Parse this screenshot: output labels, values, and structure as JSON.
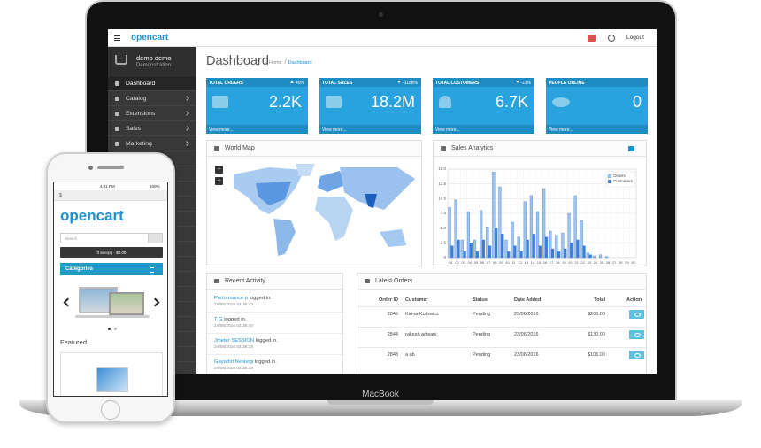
{
  "laptop": {
    "brand": "MacBook"
  },
  "header": {
    "logo": "opencart",
    "logout": "Logout"
  },
  "sidebar": {
    "user_name": "demo demo",
    "user_group": "Demonstration",
    "menu": [
      "Dashboard",
      "Catalog",
      "Extensions",
      "Sales",
      "Marketing"
    ]
  },
  "page": {
    "title": "Dashboard",
    "breadcrumb": [
      "Home",
      "Dashboard"
    ]
  },
  "tiles": [
    {
      "title": "TOTAL ORDERS",
      "change": "40%",
      "trend": "up",
      "value": "2.2K",
      "link": "View more..."
    },
    {
      "title": "TOTAL SALES",
      "change": "-1188%",
      "trend": "down",
      "value": "18.2M",
      "link": "View more..."
    },
    {
      "title": "TOTAL CUSTOMERS",
      "change": "-11%",
      "trend": "down",
      "value": "6.7K",
      "link": "View more..."
    },
    {
      "title": "PEOPLE ONLINE",
      "value": "0",
      "link": "View more..."
    }
  ],
  "world_map": {
    "title": "World Map",
    "zoom_in": "+",
    "zoom_out": "−"
  },
  "chart_data": {
    "type": "bar",
    "title": "Sales Analytics",
    "categories": [
      "01",
      "02",
      "03",
      "04",
      "05",
      "06",
      "07",
      "08",
      "09",
      "10",
      "11",
      "12",
      "13",
      "14",
      "15",
      "16",
      "17",
      "18",
      "19",
      "20",
      "21",
      "22",
      "23",
      "24",
      "25",
      "26",
      "27",
      "28",
      "29",
      "30"
    ],
    "series": [
      {
        "name": "Orders",
        "color": "#9cc4ef",
        "values": [
          8.5,
          9.8,
          3,
          7.8,
          3,
          8,
          5.2,
          14.5,
          12,
          3,
          6,
          3.5,
          9.5,
          10.5,
          7.8,
          11.7,
          4.5,
          3.8,
          4.2,
          7.5,
          10.5,
          6.3,
          0.8,
          0.3,
          0.5,
          0.2,
          0,
          0,
          0,
          0
        ]
      },
      {
        "name": "Customers",
        "color": "#3b7fd6",
        "values": [
          2,
          3,
          1,
          2.5,
          1,
          3,
          2,
          5,
          4,
          1,
          2,
          1,
          3,
          4,
          2,
          3.5,
          1.5,
          1,
          1.5,
          2.5,
          3,
          2,
          0.5,
          0,
          0,
          0,
          0,
          0,
          0,
          0
        ]
      }
    ],
    "ylim": [
      0,
      15
    ],
    "yticks": [
      0,
      2.5,
      {
        "value": 5,
        "label": "5.0"
      },
      7.5,
      {
        "value": 10,
        "label": "10.0"
      },
      12.5,
      {
        "value": 15,
        "label": "15.0"
      }
    ],
    "grid": true,
    "legend": "top-right"
  },
  "recent_activity": {
    "title": "Recent Activity",
    "items": [
      {
        "user": "Performance p",
        "action": "logged in.",
        "date": "24/06/2016 04:36:43"
      },
      {
        "user": "T G",
        "action": "logged in.",
        "date": "24/06/2016 04:36:40"
      },
      {
        "user": "Jmeter SESSION",
        "action": "logged in.",
        "date": "24/06/2016 04:36:38"
      },
      {
        "user": "Gayathri Nelavigi",
        "action": "logged in.",
        "date": "24/06/2016 04:36:35"
      }
    ]
  },
  "latest_orders": {
    "title": "Latest Orders",
    "columns": [
      "Order ID",
      "Customer",
      "Status",
      "Date Added",
      "Total",
      "Action"
    ],
    "rows": [
      [
        "2845",
        "Kama Kotowicz",
        "Pending",
        "23/06/2016",
        "$205.00"
      ],
      [
        "2844",
        "rakesh adwani",
        "Pending",
        "23/06/2016",
        "$130.00"
      ],
      [
        "2843",
        "a ab",
        "Pending",
        "23/06/2016",
        "$105.00"
      ]
    ]
  },
  "phone": {
    "time": "4:21 PM",
    "battery": "100%",
    "currency": "$",
    "logo": "opencart",
    "search_placeholder": "Search",
    "cart": "0 item(s) - $0.00",
    "categories": "Categories",
    "featured": "Featured"
  }
}
